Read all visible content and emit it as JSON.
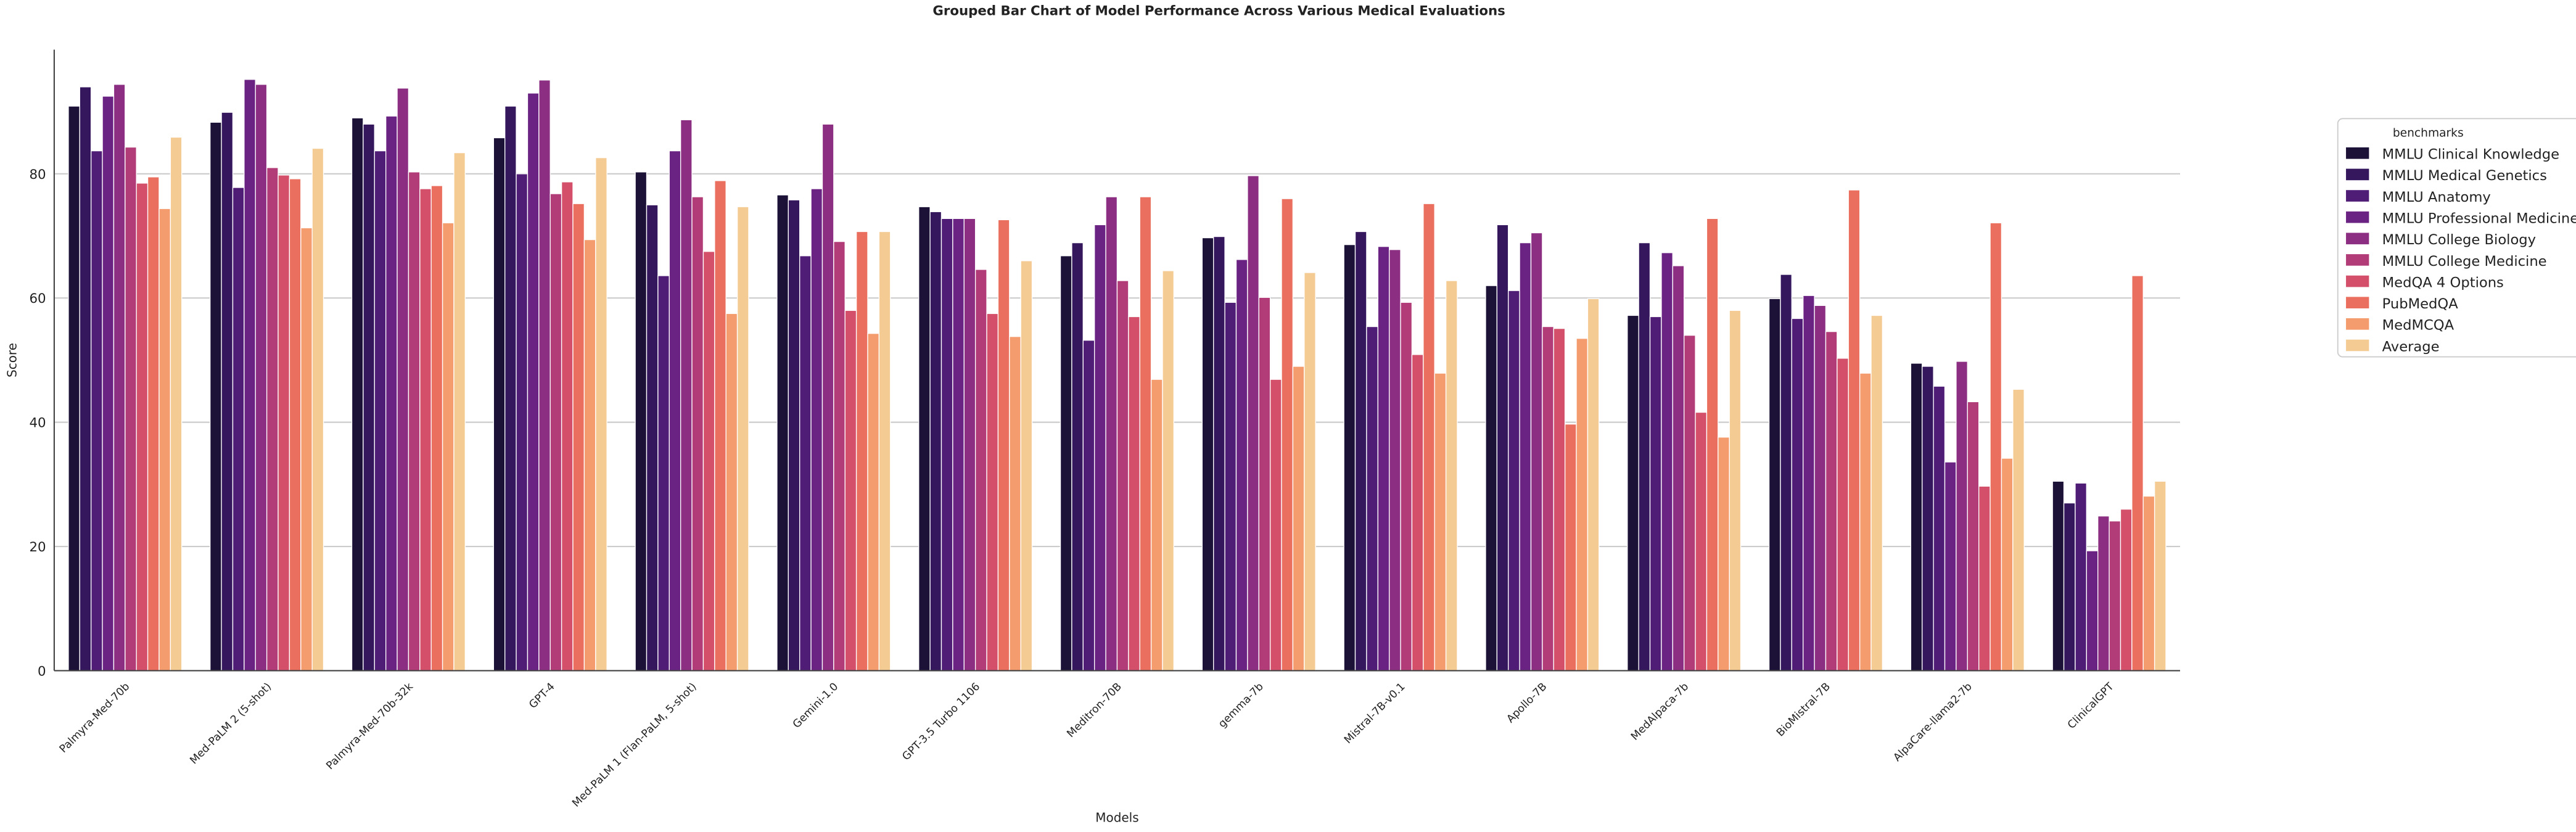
{
  "chart_data": {
    "type": "bar",
    "title": "Grouped Bar Chart of Model Performance Across Various Medical Evaluations",
    "x_label": "Models",
    "y_label": "Score",
    "legend_title": "benchmarks",
    "legend_position": "right",
    "categories": [
      "Palmyra-Med-70b",
      "Med-PaLM 2 (5-shot)",
      "Palmyra-Med-70b-32k",
      "GPT-4",
      "Med-PaLM 1 (Flan-PaLM, 5-shot)",
      "Gemini-1.0",
      "GPT-3.5 Turbo 1106",
      "Meditron-70B",
      "gemma-7b",
      "Mistral-7B-v0.1",
      "Apollo-7B",
      "MedAlpaca-7b",
      "BioMistral-7B",
      "AlpaCare-llama2-7b",
      "ClinicalGPT"
    ],
    "series": [
      {
        "name": "MMLU Clinical Knowledge",
        "color": "#1c1136",
        "values": [
          90.9,
          88.3,
          89.0,
          85.8,
          80.3,
          76.6,
          74.7,
          66.8,
          69.7,
          68.6,
          62.0,
          57.2,
          59.9,
          49.5,
          30.5
        ]
      },
      {
        "name": "MMLU Medical Genetics",
        "color": "#35175e",
        "values": [
          94.0,
          89.9,
          88.0,
          90.9,
          75.0,
          75.8,
          73.9,
          68.9,
          69.9,
          70.7,
          71.8,
          68.9,
          63.8,
          49.0,
          27.0
        ]
      },
      {
        "name": "MMLU Anatomy",
        "color": "#4f1c76",
        "values": [
          83.7,
          77.8,
          83.7,
          80.0,
          63.6,
          66.8,
          72.8,
          53.2,
          59.3,
          55.4,
          61.2,
          57.0,
          56.7,
          45.8,
          30.2
        ]
      },
      {
        "name": "MMLU Professional Medicine",
        "color": "#6a2383",
        "values": [
          92.5,
          95.2,
          89.3,
          93.0,
          83.7,
          77.6,
          72.8,
          71.8,
          66.2,
          68.3,
          68.9,
          67.3,
          60.4,
          33.6,
          19.3
        ]
      },
      {
        "name": "MMLU College Biology",
        "color": "#8c2e81",
        "values": [
          94.4,
          94.4,
          93.8,
          95.1,
          88.7,
          88.0,
          72.8,
          76.3,
          79.7,
          67.8,
          70.5,
          65.2,
          58.8,
          49.8,
          24.9
        ]
      },
      {
        "name": "MMLU College Medicine",
        "color": "#b23c77",
        "values": [
          84.3,
          81.0,
          80.3,
          76.8,
          76.3,
          69.1,
          64.6,
          62.8,
          60.1,
          59.3,
          55.4,
          54.0,
          54.6,
          43.3,
          24.1
        ]
      },
      {
        "name": "MedQA 4 Options",
        "color": "#d4506a",
        "values": [
          78.5,
          79.8,
          77.6,
          78.7,
          67.5,
          58.0,
          57.5,
          57.0,
          46.9,
          50.9,
          55.1,
          41.6,
          50.3,
          29.7,
          26.0
        ]
      },
      {
        "name": "PubMedQA",
        "color": "#ea6f5e",
        "values": [
          79.5,
          79.2,
          78.1,
          75.2,
          78.9,
          70.7,
          72.6,
          76.3,
          76.0,
          75.2,
          39.7,
          72.8,
          77.4,
          72.1,
          63.6
        ]
      },
      {
        "name": "MedMCQA",
        "color": "#f49c6d",
        "values": [
          74.4,
          71.3,
          72.1,
          69.4,
          57.5,
          54.3,
          53.8,
          46.9,
          49.0,
          47.9,
          53.5,
          37.6,
          47.9,
          34.2,
          28.1
        ]
      },
      {
        "name": "Average",
        "color": "#f5cb94",
        "values": [
          85.9,
          84.1,
          83.4,
          82.6,
          74.7,
          70.7,
          66.0,
          64.4,
          64.1,
          62.8,
          59.9,
          58.0,
          57.2,
          45.3,
          30.5
        ]
      }
    ],
    "ylim": [
      0,
      100
    ],
    "yticks": [
      0,
      20,
      40,
      60,
      80
    ],
    "grid": true
  }
}
